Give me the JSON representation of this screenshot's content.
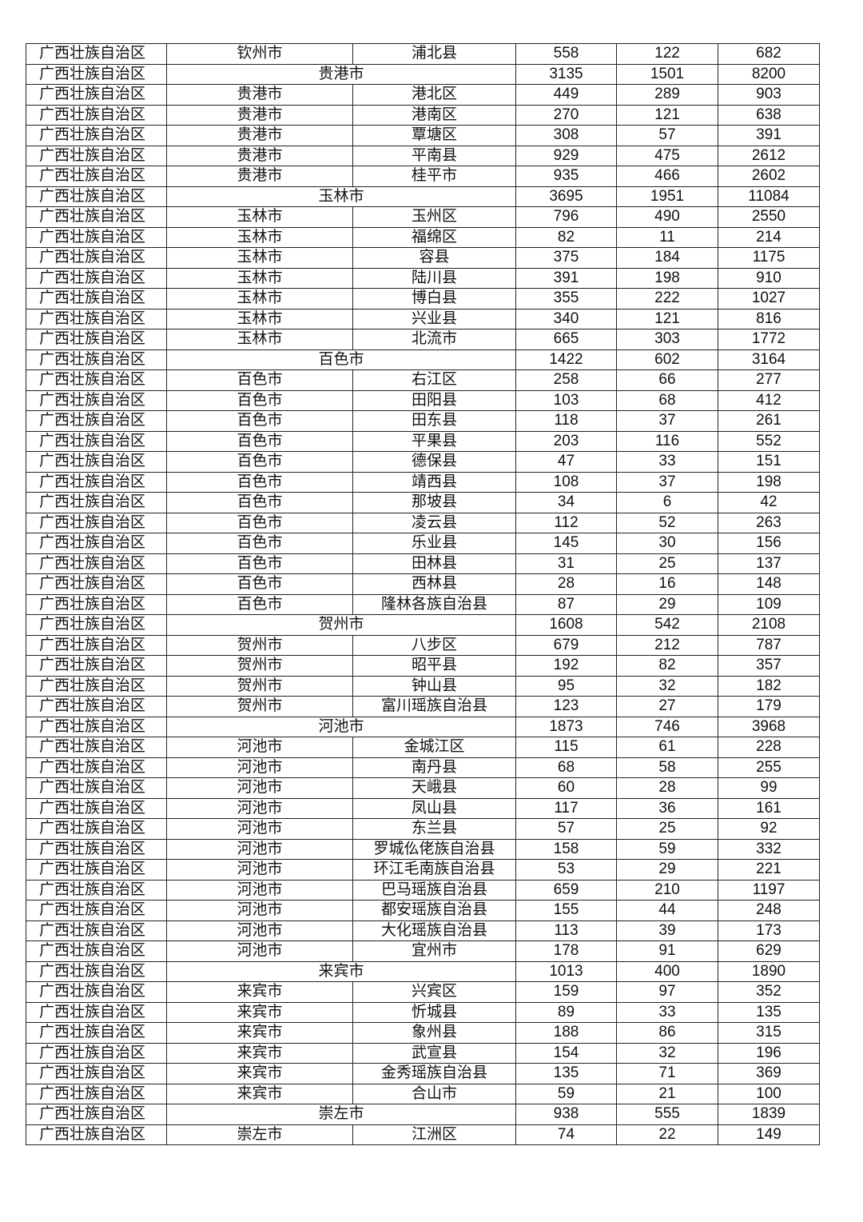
{
  "rows": [
    {
      "province": "广西壮族自治区",
      "city": "钦州市",
      "county": "浦北县",
      "v1": "558",
      "v2": "122",
      "v3": "682"
    },
    {
      "province": "广西壮族自治区",
      "city": "贵港市",
      "subtotal": true,
      "v1": "3135",
      "v2": "1501",
      "v3": "8200"
    },
    {
      "province": "广西壮族自治区",
      "city": "贵港市",
      "county": "港北区",
      "v1": "449",
      "v2": "289",
      "v3": "903"
    },
    {
      "province": "广西壮族自治区",
      "city": "贵港市",
      "county": "港南区",
      "v1": "270",
      "v2": "121",
      "v3": "638"
    },
    {
      "province": "广西壮族自治区",
      "city": "贵港市",
      "county": "覃塘区",
      "v1": "308",
      "v2": "57",
      "v3": "391"
    },
    {
      "province": "广西壮族自治区",
      "city": "贵港市",
      "county": "平南县",
      "v1": "929",
      "v2": "475",
      "v3": "2612"
    },
    {
      "province": "广西壮族自治区",
      "city": "贵港市",
      "county": "桂平市",
      "v1": "935",
      "v2": "466",
      "v3": "2602"
    },
    {
      "province": "广西壮族自治区",
      "city": "玉林市",
      "subtotal": true,
      "v1": "3695",
      "v2": "1951",
      "v3": "11084"
    },
    {
      "province": "广西壮族自治区",
      "city": "玉林市",
      "county": "玉州区",
      "v1": "796",
      "v2": "490",
      "v3": "2550"
    },
    {
      "province": "广西壮族自治区",
      "city": "玉林市",
      "county": "福绵区",
      "v1": "82",
      "v2": "11",
      "v3": "214"
    },
    {
      "province": "广西壮族自治区",
      "city": "玉林市",
      "county": "容县",
      "v1": "375",
      "v2": "184",
      "v3": "1175"
    },
    {
      "province": "广西壮族自治区",
      "city": "玉林市",
      "county": "陆川县",
      "v1": "391",
      "v2": "198",
      "v3": "910"
    },
    {
      "province": "广西壮族自治区",
      "city": "玉林市",
      "county": "博白县",
      "v1": "355",
      "v2": "222",
      "v3": "1027"
    },
    {
      "province": "广西壮族自治区",
      "city": "玉林市",
      "county": "兴业县",
      "v1": "340",
      "v2": "121",
      "v3": "816"
    },
    {
      "province": "广西壮族自治区",
      "city": "玉林市",
      "county": "北流市",
      "v1": "665",
      "v2": "303",
      "v3": "1772"
    },
    {
      "province": "广西壮族自治区",
      "city": "百色市",
      "subtotal": true,
      "v1": "1422",
      "v2": "602",
      "v3": "3164"
    },
    {
      "province": "广西壮族自治区",
      "city": "百色市",
      "county": "右江区",
      "v1": "258",
      "v2": "66",
      "v3": "277"
    },
    {
      "province": "广西壮族自治区",
      "city": "百色市",
      "county": "田阳县",
      "v1": "103",
      "v2": "68",
      "v3": "412"
    },
    {
      "province": "广西壮族自治区",
      "city": "百色市",
      "county": "田东县",
      "v1": "118",
      "v2": "37",
      "v3": "261"
    },
    {
      "province": "广西壮族自治区",
      "city": "百色市",
      "county": "平果县",
      "v1": "203",
      "v2": "116",
      "v3": "552"
    },
    {
      "province": "广西壮族自治区",
      "city": "百色市",
      "county": "德保县",
      "v1": "47",
      "v2": "33",
      "v3": "151"
    },
    {
      "province": "广西壮族自治区",
      "city": "百色市",
      "county": "靖西县",
      "v1": "108",
      "v2": "37",
      "v3": "198"
    },
    {
      "province": "广西壮族自治区",
      "city": "百色市",
      "county": "那坡县",
      "v1": "34",
      "v2": "6",
      "v3": "42"
    },
    {
      "province": "广西壮族自治区",
      "city": "百色市",
      "county": "凌云县",
      "v1": "112",
      "v2": "52",
      "v3": "263"
    },
    {
      "province": "广西壮族自治区",
      "city": "百色市",
      "county": "乐业县",
      "v1": "145",
      "v2": "30",
      "v3": "156"
    },
    {
      "province": "广西壮族自治区",
      "city": "百色市",
      "county": "田林县",
      "v1": "31",
      "v2": "25",
      "v3": "137"
    },
    {
      "province": "广西壮族自治区",
      "city": "百色市",
      "county": "西林县",
      "v1": "28",
      "v2": "16",
      "v3": "148"
    },
    {
      "province": "广西壮族自治区",
      "city": "百色市",
      "county": "隆林各族自治县",
      "v1": "87",
      "v2": "29",
      "v3": "109"
    },
    {
      "province": "广西壮族自治区",
      "city": "贺州市",
      "subtotal": true,
      "v1": "1608",
      "v2": "542",
      "v3": "2108"
    },
    {
      "province": "广西壮族自治区",
      "city": "贺州市",
      "county": "八步区",
      "v1": "679",
      "v2": "212",
      "v3": "787"
    },
    {
      "province": "广西壮族自治区",
      "city": "贺州市",
      "county": "昭平县",
      "v1": "192",
      "v2": "82",
      "v3": "357"
    },
    {
      "province": "广西壮族自治区",
      "city": "贺州市",
      "county": "钟山县",
      "v1": "95",
      "v2": "32",
      "v3": "182"
    },
    {
      "province": "广西壮族自治区",
      "city": "贺州市",
      "county": "富川瑶族自治县",
      "v1": "123",
      "v2": "27",
      "v3": "179"
    },
    {
      "province": "广西壮族自治区",
      "city": "河池市",
      "subtotal": true,
      "v1": "1873",
      "v2": "746",
      "v3": "3968"
    },
    {
      "province": "广西壮族自治区",
      "city": "河池市",
      "county": "金城江区",
      "v1": "115",
      "v2": "61",
      "v3": "228"
    },
    {
      "province": "广西壮族自治区",
      "city": "河池市",
      "county": "南丹县",
      "v1": "68",
      "v2": "58",
      "v3": "255"
    },
    {
      "province": "广西壮族自治区",
      "city": "河池市",
      "county": "天峨县",
      "v1": "60",
      "v2": "28",
      "v3": "99"
    },
    {
      "province": "广西壮族自治区",
      "city": "河池市",
      "county": "凤山县",
      "v1": "117",
      "v2": "36",
      "v3": "161"
    },
    {
      "province": "广西壮族自治区",
      "city": "河池市",
      "county": "东兰县",
      "v1": "57",
      "v2": "25",
      "v3": "92"
    },
    {
      "province": "广西壮族自治区",
      "city": "河池市",
      "county": "罗城仫佬族自治县",
      "v1": "158",
      "v2": "59",
      "v3": "332"
    },
    {
      "province": "广西壮族自治区",
      "city": "河池市",
      "county": "环江毛南族自治县",
      "v1": "53",
      "v2": "29",
      "v3": "221"
    },
    {
      "province": "广西壮族自治区",
      "city": "河池市",
      "county": "巴马瑶族自治县",
      "v1": "659",
      "v2": "210",
      "v3": "1197"
    },
    {
      "province": "广西壮族自治区",
      "city": "河池市",
      "county": "都安瑶族自治县",
      "v1": "155",
      "v2": "44",
      "v3": "248"
    },
    {
      "province": "广西壮族自治区",
      "city": "河池市",
      "county": "大化瑶族自治县",
      "v1": "113",
      "v2": "39",
      "v3": "173"
    },
    {
      "province": "广西壮族自治区",
      "city": "河池市",
      "county": "宜州市",
      "v1": "178",
      "v2": "91",
      "v3": "629"
    },
    {
      "province": "广西壮族自治区",
      "city": "来宾市",
      "subtotal": true,
      "v1": "1013",
      "v2": "400",
      "v3": "1890"
    },
    {
      "province": "广西壮族自治区",
      "city": "来宾市",
      "county": "兴宾区",
      "v1": "159",
      "v2": "97",
      "v3": "352"
    },
    {
      "province": "广西壮族自治区",
      "city": "来宾市",
      "county": "忻城县",
      "v1": "89",
      "v2": "33",
      "v3": "135"
    },
    {
      "province": "广西壮族自治区",
      "city": "来宾市",
      "county": "象州县",
      "v1": "188",
      "v2": "86",
      "v3": "315"
    },
    {
      "province": "广西壮族自治区",
      "city": "来宾市",
      "county": "武宣县",
      "v1": "154",
      "v2": "32",
      "v3": "196"
    },
    {
      "province": "广西壮族自治区",
      "city": "来宾市",
      "county": "金秀瑶族自治县",
      "v1": "135",
      "v2": "71",
      "v3": "369"
    },
    {
      "province": "广西壮族自治区",
      "city": "来宾市",
      "county": "合山市",
      "v1": "59",
      "v2": "21",
      "v3": "100"
    },
    {
      "province": "广西壮族自治区",
      "city": "崇左市",
      "subtotal": true,
      "v1": "938",
      "v2": "555",
      "v3": "1839"
    },
    {
      "province": "广西壮族自治区",
      "city": "崇左市",
      "county": "江洲区",
      "v1": "74",
      "v2": "22",
      "v3": "149"
    }
  ]
}
